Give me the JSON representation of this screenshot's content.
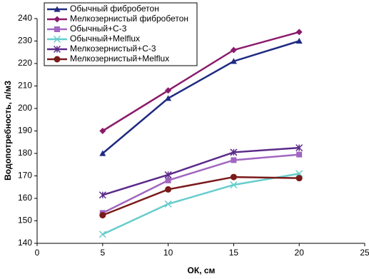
{
  "chart_data": {
    "type": "line",
    "x_label": "ОК, см",
    "y_label": "Водопотребность, л/м3",
    "xlim": [
      0,
      25
    ],
    "xticks": [
      0,
      5,
      10,
      15,
      20,
      25
    ],
    "ylim": [
      140,
      240
    ],
    "yticks": [
      140,
      150,
      160,
      170,
      180,
      190,
      200,
      210,
      220,
      230,
      240
    ],
    "x": [
      5,
      10,
      15,
      20
    ],
    "legend": "upper left",
    "series": [
      {
        "name": "Обычный фибробетон",
        "color": "#1f2a80",
        "marker": "triangle",
        "values": [
          180,
          204.5,
          221,
          230
        ]
      },
      {
        "name": "Мелкозернистый фибробетон",
        "color": "#8b1a6b",
        "marker": "diamond",
        "values": [
          190,
          208,
          226,
          234
        ]
      },
      {
        "name": "Обычный+С-3",
        "color": "#a066c0",
        "marker": "square",
        "values": [
          153.5,
          168,
          177,
          179.5
        ]
      },
      {
        "name": "Обычный+Melflux",
        "color": "#66cccc",
        "marker": "x",
        "values": [
          144,
          157.5,
          166,
          171
        ]
      },
      {
        "name": "Мелкозернистый+С-3",
        "color": "#5b2a8a",
        "marker": "star",
        "values": [
          161.5,
          170.5,
          180.5,
          182.5
        ]
      },
      {
        "name": "Мелкозернистый+Melflux",
        "color": "#7a1a1a",
        "marker": "circle",
        "values": [
          152.5,
          164,
          169.5,
          169
        ]
      }
    ]
  }
}
